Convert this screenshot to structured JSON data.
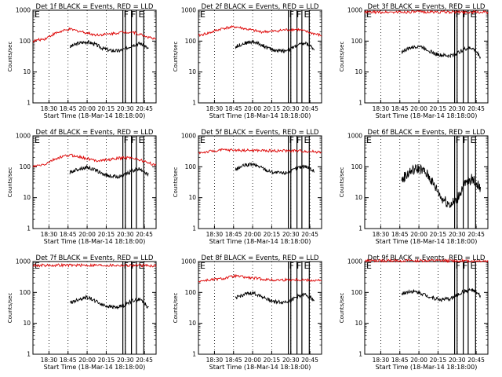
{
  "figure": {
    "background": "#ffffff",
    "events_color": "#000000",
    "lld_color": "#dd0000"
  },
  "chart_data": [
    {
      "type": "line",
      "title": "Det 1f BLACK = Events, RED = LLD",
      "xlabel": "Start Time (18-Mar-14 18:18:00)",
      "ylabel": "Counts/sec",
      "yscale": "log",
      "ylim": [
        1,
        1000
      ],
      "yticks": [
        "1",
        "10",
        "100",
        "1000"
      ],
      "xticks": [
        "18:30",
        "18:45",
        "20:00",
        "20:15",
        "20:30",
        "20:45"
      ],
      "grid": "vertical dotted at x ticks",
      "flags": [
        {
          "label": "F",
          "x": 0.5
        },
        {
          "label": "F",
          "x": 0.65
        },
        {
          "label": "E",
          "x": 0.8
        }
      ],
      "series": [
        {
          "name": "Events",
          "color": "#000000",
          "x": [
            0.3,
            0.37,
            0.44,
            0.5,
            0.56,
            0.62,
            0.69,
            0.75,
            0.81,
            0.87,
            0.94
          ],
          "y": [
            65,
            85,
            95,
            80,
            60,
            50,
            48,
            55,
            75,
            85,
            55
          ]
        },
        {
          "name": "LLD",
          "color": "#dd0000",
          "x": [
            0,
            0.1,
            0.2,
            0.3,
            0.4,
            0.5,
            0.6,
            0.7,
            0.8,
            0.9,
            1.0
          ],
          "y": [
            100,
            120,
            190,
            240,
            200,
            160,
            165,
            190,
            200,
            150,
            110
          ]
        }
      ],
      "bars": [
        0.73,
        0.75,
        0.8,
        0.84,
        0.9
      ]
    },
    {
      "type": "line",
      "title": "Det 2f BLACK = Events, RED = LLD",
      "xlabel": "Start Time (18-Mar-14 18:18:00)",
      "ylabel": "Counts/sec",
      "yscale": "log",
      "ylim": [
        1,
        1000
      ],
      "yticks": [
        "1",
        "10",
        "100",
        "1000"
      ],
      "xticks": [
        "18:30",
        "18:45",
        "20:00",
        "20:15",
        "20:30",
        "20:45"
      ],
      "grid": "vertical dotted at x ticks",
      "flags": [
        {
          "label": "F",
          "x": 0.5
        },
        {
          "label": "F",
          "x": 0.65
        },
        {
          "label": "E",
          "x": 0.8
        }
      ],
      "series": [
        {
          "name": "Events",
          "color": "#000000",
          "x": [
            0.3,
            0.37,
            0.44,
            0.5,
            0.56,
            0.62,
            0.69,
            0.75,
            0.81,
            0.87,
            0.94
          ],
          "y": [
            65,
            85,
            95,
            80,
            60,
            50,
            48,
            55,
            75,
            85,
            55
          ]
        },
        {
          "name": "LLD",
          "color": "#dd0000",
          "x": [
            0,
            0.1,
            0.2,
            0.3,
            0.4,
            0.5,
            0.6,
            0.7,
            0.8,
            0.9,
            1.0
          ],
          "y": [
            150,
            190,
            260,
            290,
            240,
            200,
            205,
            230,
            240,
            190,
            150
          ]
        }
      ],
      "bars": [
        0.73,
        0.75,
        0.8,
        0.84,
        0.9
      ]
    },
    {
      "type": "line",
      "title": "Det 3f BLACK = Events, RED = LLD",
      "xlabel": "Start Time (18-Mar-14 18:18:00)",
      "ylabel": "Counts/sec",
      "yscale": "log",
      "ylim": [
        1,
        1000
      ],
      "yticks": [
        "1",
        "10",
        "100",
        "1000"
      ],
      "xticks": [
        "18:30",
        "18:45",
        "20:00",
        "20:15",
        "20:30",
        "20:45"
      ],
      "grid": "vertical dotted at x ticks",
      "flags": [
        {
          "label": "F",
          "x": 0.5
        },
        {
          "label": "F",
          "x": 0.65
        },
        {
          "label": "E",
          "x": 0.8
        }
      ],
      "series": [
        {
          "name": "Events",
          "color": "#000000",
          "x": [
            0.3,
            0.37,
            0.44,
            0.5,
            0.56,
            0.62,
            0.69,
            0.75,
            0.81,
            0.87,
            0.94
          ],
          "y": [
            45,
            60,
            70,
            55,
            40,
            35,
            33,
            40,
            55,
            60,
            30
          ]
        },
        {
          "name": "LLD",
          "color": "#dd0000",
          "x": [
            0,
            0.25,
            0.5,
            0.75,
            1.0
          ],
          "y": [
            860,
            870,
            880,
            870,
            860
          ]
        }
      ],
      "bars": [
        0.73,
        0.75,
        0.8,
        0.84,
        0.9
      ]
    },
    {
      "type": "line",
      "title": "Det 4f BLACK = Events, RED = LLD",
      "xlabel": "Start Time (18-Mar-14 18:18:00)",
      "ylabel": "Counts/sec",
      "yscale": "log",
      "ylim": [
        1,
        1000
      ],
      "yticks": [
        "1",
        "10",
        "100",
        "1000"
      ],
      "xticks": [
        "18:30",
        "18:45",
        "20:00",
        "20:15",
        "20:30",
        "20:45"
      ],
      "grid": "vertical dotted at x ticks",
      "flags": [
        {
          "label": "F",
          "x": 0.5
        },
        {
          "label": "F",
          "x": 0.65
        },
        {
          "label": "E",
          "x": 0.8
        }
      ],
      "series": [
        {
          "name": "Events",
          "color": "#000000",
          "x": [
            0.3,
            0.37,
            0.44,
            0.5,
            0.56,
            0.62,
            0.69,
            0.75,
            0.81,
            0.87,
            0.94
          ],
          "y": [
            65,
            85,
            95,
            80,
            60,
            50,
            48,
            55,
            75,
            85,
            55
          ]
        },
        {
          "name": "LLD",
          "color": "#dd0000",
          "x": [
            0,
            0.1,
            0.2,
            0.3,
            0.4,
            0.5,
            0.6,
            0.7,
            0.8,
            0.9,
            1.0
          ],
          "y": [
            100,
            120,
            190,
            240,
            200,
            160,
            165,
            190,
            200,
            150,
            110
          ]
        }
      ],
      "bars": [
        0.73,
        0.75,
        0.8,
        0.84,
        0.9
      ]
    },
    {
      "type": "line",
      "title": "Det 5f BLACK = Events, RED = LLD",
      "xlabel": "Start Time (18-Mar-14 18:18:00)",
      "ylabel": "Counts/sec",
      "yscale": "log",
      "ylim": [
        1,
        1000
      ],
      "yticks": [
        "1",
        "10",
        "100",
        "1000"
      ],
      "xticks": [
        "18:30",
        "18:45",
        "20:00",
        "20:15",
        "20:30",
        "20:45"
      ],
      "grid": "vertical dotted at x ticks",
      "flags": [
        {
          "label": "F",
          "x": 0.5
        },
        {
          "label": "F",
          "x": 0.65
        },
        {
          "label": "E",
          "x": 0.8
        }
      ],
      "series": [
        {
          "name": "Events",
          "color": "#000000",
          "x": [
            0.3,
            0.37,
            0.44,
            0.5,
            0.56,
            0.62,
            0.69,
            0.75,
            0.81,
            0.87,
            0.94
          ],
          "y": [
            80,
            110,
            120,
            100,
            75,
            65,
            62,
            70,
            95,
            105,
            70
          ]
        },
        {
          "name": "LLD",
          "color": "#dd0000",
          "x": [
            0,
            0.2,
            0.4,
            0.6,
            0.8,
            1.0
          ],
          "y": [
            280,
            350,
            340,
            330,
            330,
            300
          ]
        }
      ],
      "bars": [
        0.73,
        0.75,
        0.8,
        0.84,
        0.9
      ]
    },
    {
      "type": "line",
      "title": "Det 6f BLACK = Events, RED = LLD",
      "xlabel": "Start Time (18-Mar-14 18:18:00)",
      "ylabel": "Counts/sec",
      "yscale": "log",
      "ylim": [
        1,
        1000
      ],
      "yticks": [
        "1",
        "10",
        "100",
        "1000"
      ],
      "xticks": [
        "18:30",
        "18:45",
        "20:00",
        "20:15",
        "20:30",
        "20:45"
      ],
      "grid": "vertical dotted at x ticks",
      "flags": [
        {
          "label": "F",
          "x": 0.5
        },
        {
          "label": "F",
          "x": 0.65
        },
        {
          "label": "E",
          "x": 0.8
        }
      ],
      "series": [
        {
          "name": "Events",
          "color": "#000000",
          "x": [
            0.3,
            0.37,
            0.44,
            0.5,
            0.56,
            0.62,
            0.69,
            0.75,
            0.81,
            0.87,
            0.94
          ],
          "y": [
            35,
            70,
            90,
            60,
            25,
            10,
            6,
            8,
            25,
            40,
            20
          ]
        }
      ],
      "bars": [
        0.73,
        0.75,
        0.8,
        0.84,
        0.9
      ]
    },
    {
      "type": "line",
      "title": "Det 7f BLACK = Events, RED = LLD",
      "xlabel": "Start Time (18-Mar-14 18:18:00)",
      "ylabel": "Counts/sec",
      "yscale": "log",
      "ylim": [
        1,
        1000
      ],
      "yticks": [
        "1",
        "10",
        "100",
        "1000"
      ],
      "xticks": [
        "18:30",
        "18:45",
        "20:00",
        "20:15",
        "20:30",
        "20:45"
      ],
      "grid": "vertical dotted at x ticks",
      "flags": [
        {
          "label": "F",
          "x": 0.5
        },
        {
          "label": "F",
          "x": 0.65
        },
        {
          "label": "E",
          "x": 0.8
        }
      ],
      "series": [
        {
          "name": "Events",
          "color": "#000000",
          "x": [
            0.3,
            0.37,
            0.44,
            0.5,
            0.56,
            0.62,
            0.69,
            0.75,
            0.81,
            0.87,
            0.94
          ],
          "y": [
            45,
            60,
            70,
            55,
            40,
            35,
            33,
            40,
            55,
            60,
            30
          ]
        },
        {
          "name": "LLD",
          "color": "#dd0000",
          "x": [
            0,
            0.25,
            0.5,
            0.75,
            1.0
          ],
          "y": [
            750,
            760,
            760,
            750,
            740
          ]
        }
      ],
      "bars": [
        0.73,
        0.75,
        0.8,
        0.84,
        0.9
      ]
    },
    {
      "type": "line",
      "title": "Det 8f BLACK = Events, RED = LLD",
      "xlabel": "Start Time (18-Mar-14 18:18:00)",
      "ylabel": "Counts/sec",
      "yscale": "log",
      "ylim": [
        1,
        1000
      ],
      "yticks": [
        "1",
        "10",
        "100",
        "1000"
      ],
      "xticks": [
        "18:30",
        "18:45",
        "20:00",
        "20:15",
        "20:30",
        "20:45"
      ],
      "grid": "vertical dotted at x ticks",
      "flags": [
        {
          "label": "F",
          "x": 0.5
        },
        {
          "label": "F",
          "x": 0.65
        },
        {
          "label": "E",
          "x": 0.8
        }
      ],
      "series": [
        {
          "name": "Events",
          "color": "#000000",
          "x": [
            0.3,
            0.37,
            0.44,
            0.5,
            0.56,
            0.62,
            0.69,
            0.75,
            0.81,
            0.87,
            0.94
          ],
          "y": [
            65,
            85,
            95,
            80,
            60,
            50,
            48,
            55,
            75,
            85,
            55
          ]
        },
        {
          "name": "LLD",
          "color": "#dd0000",
          "x": [
            0,
            0.2,
            0.3,
            0.4,
            0.6,
            0.8,
            1.0
          ],
          "y": [
            230,
            280,
            340,
            300,
            250,
            260,
            240
          ]
        }
      ],
      "bars": [
        0.73,
        0.75,
        0.8,
        0.84,
        0.9
      ]
    },
    {
      "type": "line",
      "title": "Det 9f BLACK = Events, RED = LLD",
      "xlabel": "Start Time (18-Mar-14 18:18:00)",
      "ylabel": "Counts/sec",
      "yscale": "log",
      "ylim": [
        1,
        1000
      ],
      "yticks": [
        "1",
        "10",
        "100",
        "1000"
      ],
      "xticks": [
        "18:30",
        "18:45",
        "20:00",
        "20:15",
        "20:30",
        "20:45"
      ],
      "grid": "vertical dotted at x ticks",
      "flags": [
        {
          "label": "F",
          "x": 0.5
        },
        {
          "label": "F",
          "x": 0.65
        },
        {
          "label": "E",
          "x": 0.8
        }
      ],
      "series": [
        {
          "name": "Events",
          "color": "#000000",
          "x": [
            0.3,
            0.37,
            0.44,
            0.5,
            0.56,
            0.62,
            0.69,
            0.75,
            0.81,
            0.87,
            0.94
          ],
          "y": [
            90,
            110,
            100,
            80,
            65,
            58,
            62,
            80,
            110,
            120,
            75
          ]
        },
        {
          "name": "LLD",
          "color": "#dd0000",
          "x": [
            0,
            0.25,
            0.5,
            0.75,
            1.0
          ],
          "y": [
            1050,
            1060,
            1060,
            1050,
            1040
          ]
        }
      ],
      "bars": [
        0.73,
        0.75,
        0.8,
        0.84,
        0.9
      ]
    }
  ]
}
